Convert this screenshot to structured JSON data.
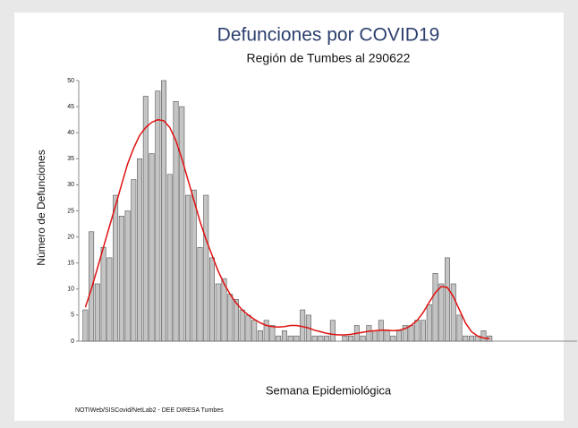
{
  "chart_data": {
    "type": "bar",
    "title": "Defunciones por COVID19",
    "subtitle": "Región de Tumbes al 290622",
    "x_label": "Semana Epidemiológica",
    "y_label": "Número de Defunciones",
    "source": "NOTIWeb/SISCovid/NetLab2 - DEE DIRESA Tumbes",
    "categories": [
      null,
      null,
      null,
      null,
      null,
      null,
      null,
      null,
      null,
      null,
      null,
      null,
      null,
      null,
      null,
      null,
      null,
      null,
      null,
      null,
      null,
      null,
      null,
      null,
      null,
      null,
      null,
      null,
      null,
      null,
      null,
      null,
      null,
      null,
      null,
      null,
      null,
      null,
      null,
      null,
      null,
      null,
      null,
      null,
      null,
      null,
      null,
      null,
      null,
      null,
      null,
      null,
      null,
      null,
      null,
      null,
      null,
      null,
      null,
      null,
      null,
      null,
      null,
      null,
      null,
      null,
      null,
      null,
      null,
      null,
      null,
      null,
      null,
      null,
      null,
      null,
      null,
      null,
      null,
      null,
      null,
      null
    ],
    "series": [
      {
        "type": "bar",
        "color": "#c4c4c4",
        "values": [
          6,
          21,
          11,
          18,
          16,
          28,
          24,
          25,
          31,
          35,
          47,
          36,
          48,
          50,
          32,
          46,
          45,
          28,
          29,
          18,
          28,
          16,
          11,
          12,
          9,
          8,
          6,
          5,
          4,
          2,
          4,
          3,
          1,
          2,
          1,
          1,
          6,
          5,
          1,
          1,
          1,
          4,
          0,
          1,
          1,
          3,
          1,
          3,
          2,
          4,
          2,
          1,
          2,
          3,
          3,
          4,
          4,
          7,
          13,
          11,
          16,
          11,
          5,
          1,
          1,
          1,
          2,
          1,
          0,
          0,
          0,
          0,
          0,
          0,
          0,
          0,
          0,
          0,
          0,
          0,
          0,
          0
        ]
      },
      {
        "type": "line",
        "color": "#e01010",
        "values": [
          6.5,
          10,
          14,
          18,
          22,
          26,
          30,
          34,
          37,
          39.5,
          41,
          42,
          42.5,
          42.3,
          41,
          38.5,
          35,
          31,
          27,
          23,
          19.5,
          16.5,
          13.5,
          11,
          9,
          7.3,
          6,
          5,
          4.2,
          3.5,
          3,
          2.8,
          2.7,
          2.8,
          3,
          3,
          2.8,
          2.5,
          2.1,
          1.8,
          1.5,
          1.3,
          1.2,
          1.2,
          1.3,
          1.5,
          1.7,
          1.9,
          2,
          2.1,
          2.1,
          2,
          2.1,
          2.4,
          3,
          4,
          5.5,
          7.5,
          9.3,
          10.5,
          10.3,
          8.5,
          6,
          3.5,
          1.8,
          1,
          0.6,
          0.5,
          null,
          null,
          null,
          null,
          null,
          null,
          null,
          null,
          null,
          null,
          null,
          null,
          null,
          null
        ]
      }
    ],
    "ylim": [
      0,
      50
    ],
    "yticks": [
      0,
      5,
      10,
      15,
      20,
      25,
      30,
      35,
      40,
      45,
      50
    ]
  }
}
